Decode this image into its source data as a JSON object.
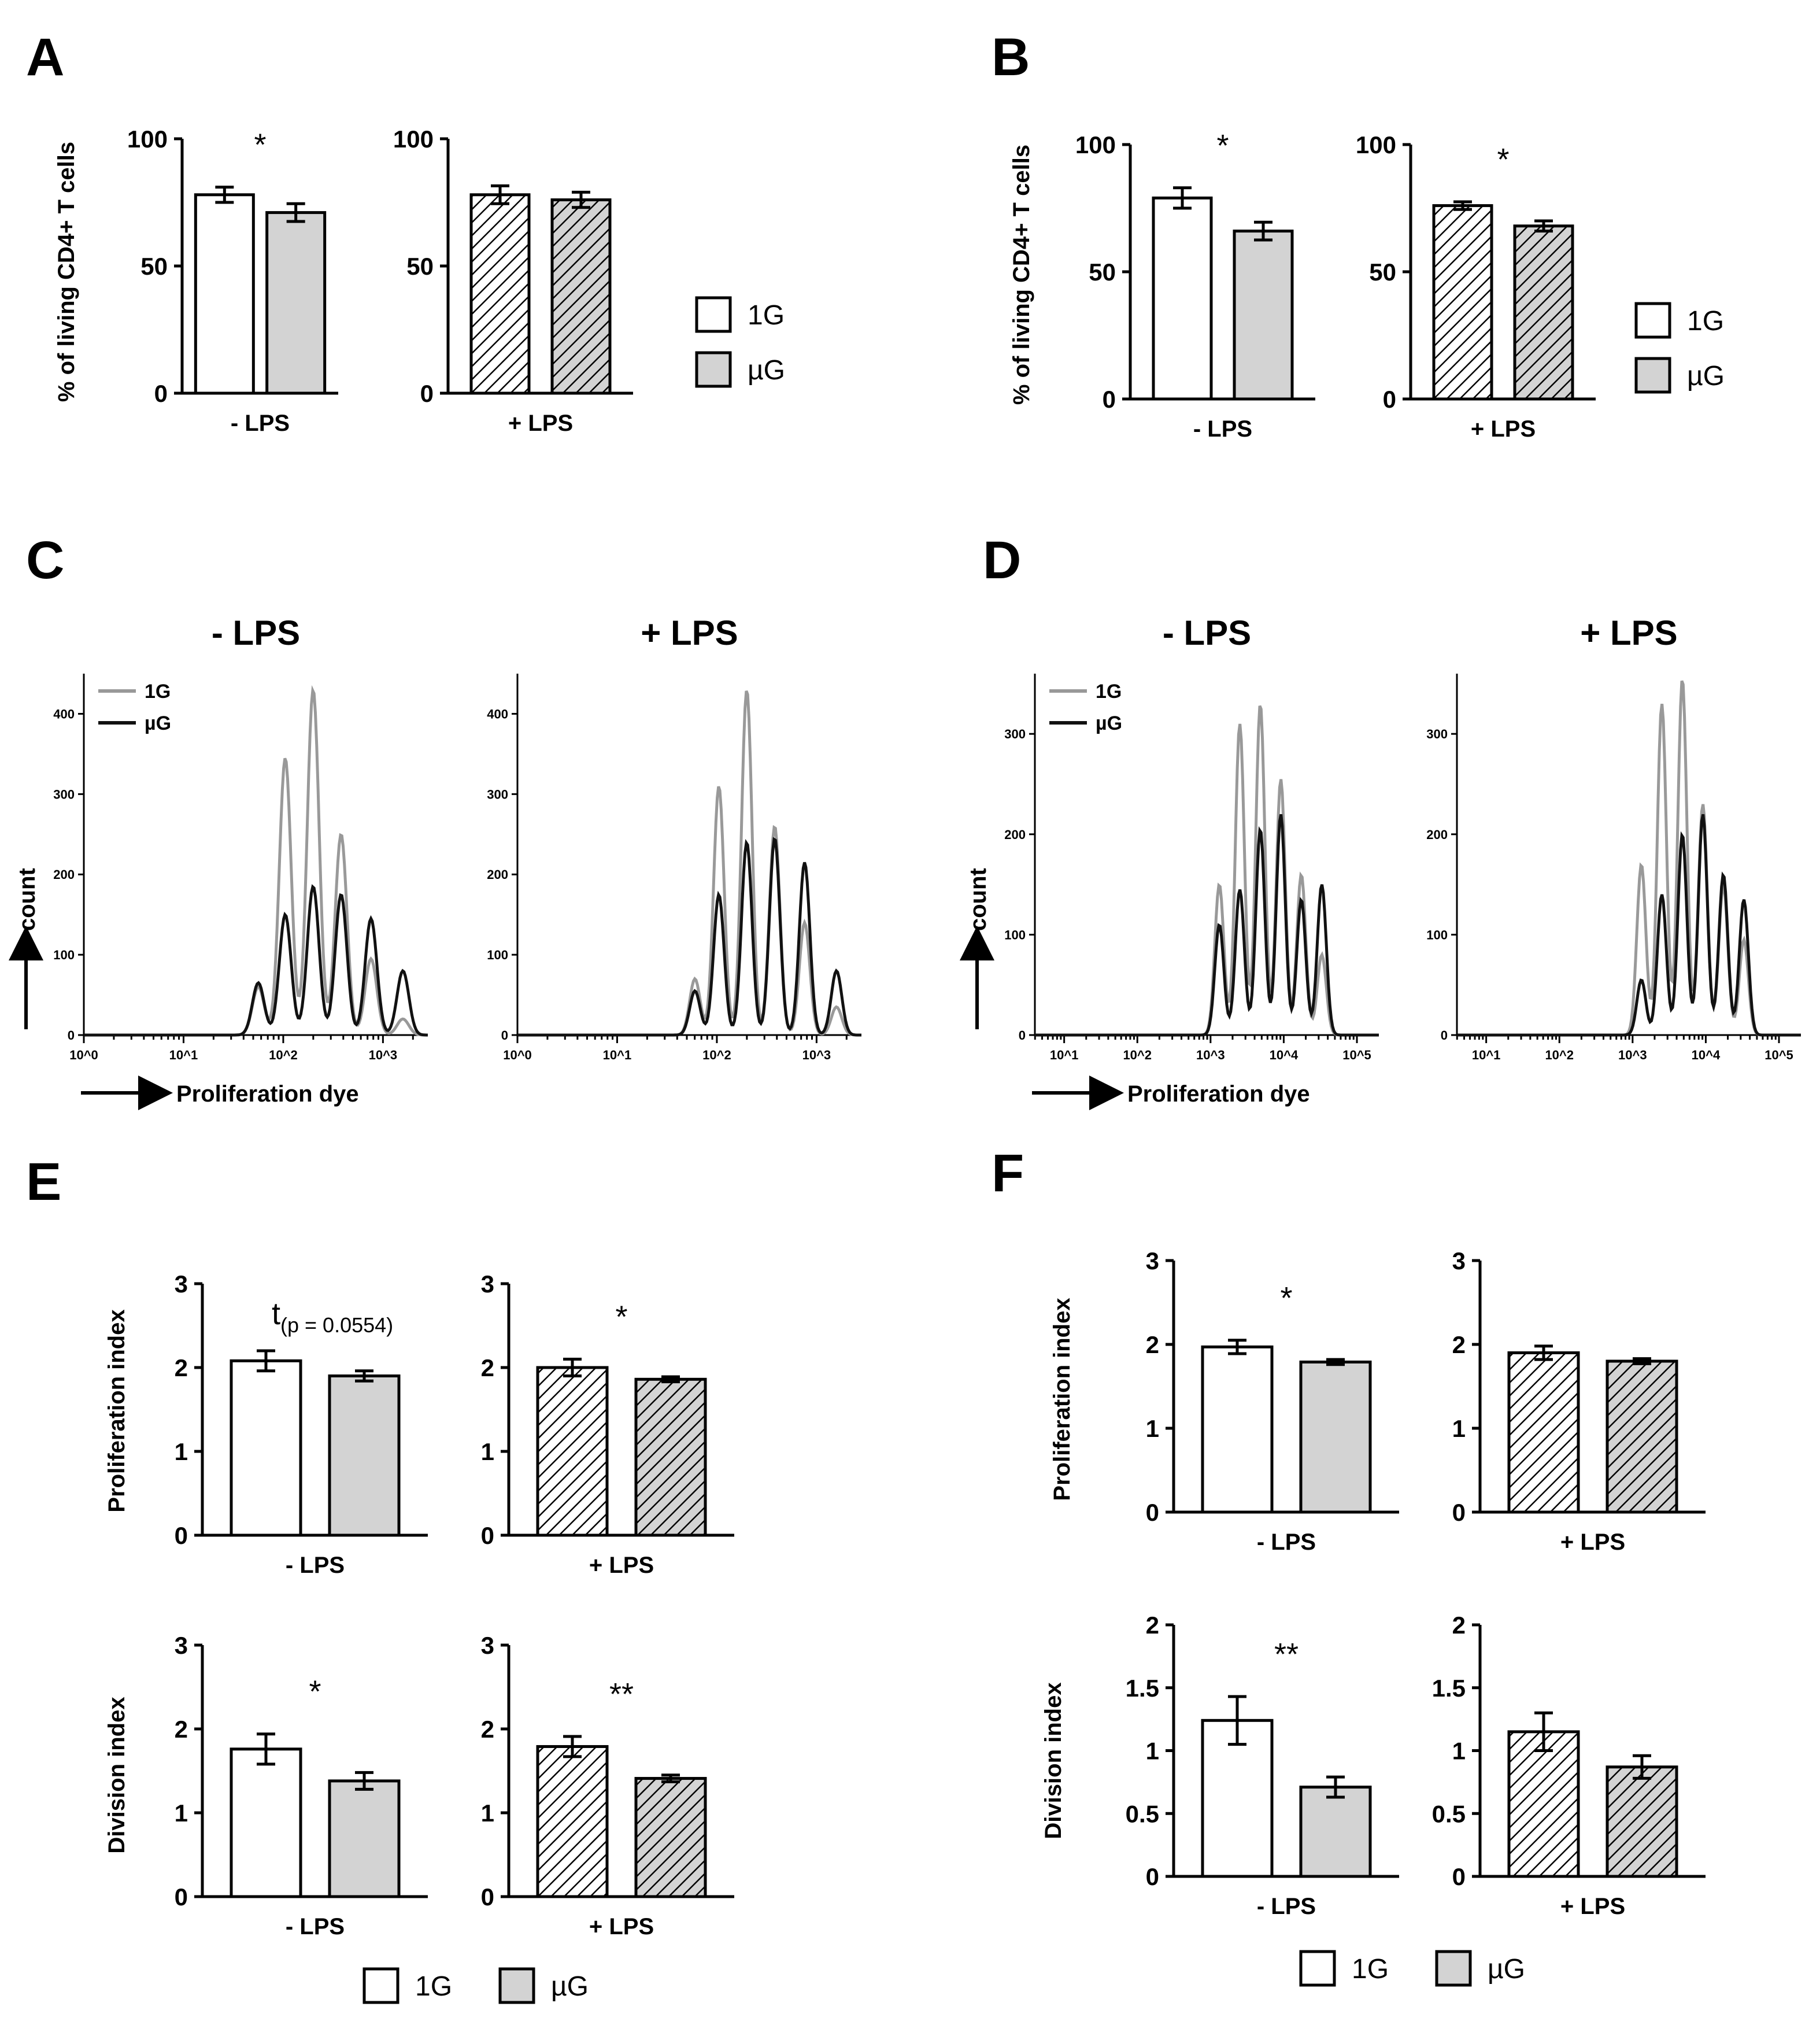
{
  "colors": {
    "g1_fill": "#ffffff",
    "ug_fill": "#d3d3d3",
    "g1_line": "#999999",
    "ug_line": "#111111",
    "stroke": "#000000"
  },
  "legend": {
    "g1": "1G",
    "ug": "µG"
  },
  "histogram_legend": {
    "g1": "1G",
    "ug": "µG"
  },
  "panel_labels": [
    "A",
    "B",
    "C",
    "D",
    "E",
    "F"
  ],
  "chart_data": [
    {
      "id": "A",
      "type": "bar",
      "ylabel": "% of living CD4+ T cells",
      "ylim": [
        0,
        100
      ],
      "yticks": [
        "0",
        "50",
        "100"
      ],
      "groups": [
        {
          "label": "- LPS",
          "hatched": false,
          "categories": [
            "1G",
            "µG"
          ],
          "values": [
            78,
            71
          ],
          "errors": [
            3,
            3.5
          ],
          "significance": "*"
        },
        {
          "label": "+ LPS",
          "hatched": true,
          "categories": [
            "1G",
            "µG"
          ],
          "values": [
            78,
            76
          ],
          "errors": [
            3.5,
            3
          ],
          "significance": ""
        }
      ]
    },
    {
      "id": "B",
      "type": "bar",
      "ylabel": "% of living CD4+ T cells",
      "ylim": [
        0,
        100
      ],
      "yticks": [
        "0",
        "50",
        "100"
      ],
      "groups": [
        {
          "label": "- LPS",
          "hatched": false,
          "categories": [
            "1G",
            "µG"
          ],
          "values": [
            79,
            66
          ],
          "errors": [
            4,
            3.5
          ],
          "significance": "*"
        },
        {
          "label": "+ LPS",
          "hatched": true,
          "categories": [
            "1G",
            "µG"
          ],
          "values": [
            76,
            68
          ],
          "errors": [
            1.5,
            2
          ],
          "significance": "*"
        }
      ]
    },
    {
      "id": "C",
      "type": "line",
      "xlabel": "Proliferation dye",
      "ylabel": "count",
      "xtick_labels": [
        "10^0",
        "10^1",
        "10^2",
        "10^3"
      ],
      "panels": [
        {
          "title": "- LPS",
          "ylim": [
            0,
            450
          ],
          "yticks": [
            "0",
            "100",
            "200",
            "300",
            "400"
          ],
          "peaks_log10": [
            1.75,
            2.02,
            2.3,
            2.58,
            2.88,
            3.2
          ],
          "series": [
            {
              "name": "1G",
              "heights": [
                60,
                345,
                430,
                250,
                95,
                20
              ]
            },
            {
              "name": "µG",
              "heights": [
                65,
                150,
                185,
                175,
                145,
                80
              ]
            }
          ]
        },
        {
          "title": "+ LPS",
          "ylim": [
            0,
            450
          ],
          "yticks": [
            "0",
            "100",
            "200",
            "300",
            "400"
          ],
          "peaks_log10": [
            1.78,
            2.02,
            2.3,
            2.58,
            2.88,
            3.2
          ],
          "series": [
            {
              "name": "1G",
              "heights": [
                70,
                310,
                430,
                260,
                140,
                35
              ]
            },
            {
              "name": "µG",
              "heights": [
                55,
                175,
                240,
                245,
                215,
                80
              ]
            }
          ]
        }
      ]
    },
    {
      "id": "D",
      "type": "line",
      "xlabel": "Proliferation dye",
      "ylabel": "count",
      "xtick_labels": [
        "10^1",
        "10^2",
        "10^3",
        "10^4",
        "10^5"
      ],
      "panels": [
        {
          "title": "- LPS",
          "ylim": [
            0,
            360
          ],
          "yticks": [
            "0",
            "100",
            "200",
            "300"
          ],
          "peaks_log10": [
            3.12,
            3.4,
            3.68,
            3.96,
            4.24,
            4.52
          ],
          "series": [
            {
              "name": "1G",
              "heights": [
                150,
                310,
                330,
                255,
                160,
                80
              ]
            },
            {
              "name": "µG",
              "heights": [
                110,
                145,
                205,
                220,
                135,
                150
              ]
            }
          ]
        },
        {
          "title": "+ LPS",
          "ylim": [
            0,
            360
          ],
          "yticks": [
            "0",
            "100",
            "200",
            "300"
          ],
          "peaks_log10": [
            3.12,
            3.4,
            3.68,
            3.96,
            4.24,
            4.52
          ],
          "series": [
            {
              "name": "1G",
              "heights": [
                170,
                330,
                355,
                230,
                150,
                95
              ]
            },
            {
              "name": "µG",
              "heights": [
                55,
                140,
                200,
                220,
                160,
                135
              ]
            }
          ]
        }
      ]
    },
    {
      "id": "E-proliferation",
      "type": "bar",
      "ylabel": "Proliferation index",
      "ylim": [
        0,
        3
      ],
      "yticks": [
        "0",
        "1",
        "2",
        "3"
      ],
      "groups": [
        {
          "label": "- LPS",
          "hatched": false,
          "categories": [
            "1G",
            "µG"
          ],
          "values": [
            2.08,
            1.9
          ],
          "errors": [
            0.12,
            0.06
          ],
          "significance": "t",
          "significance_sub": "(p = 0.0554)"
        },
        {
          "label": "+ LPS",
          "hatched": true,
          "categories": [
            "1G",
            "µG"
          ],
          "values": [
            2.0,
            1.86
          ],
          "errors": [
            0.1,
            0.03
          ],
          "significance": "*"
        }
      ]
    },
    {
      "id": "E-division",
      "type": "bar",
      "ylabel": "Division index",
      "ylim": [
        0,
        3
      ],
      "yticks": [
        "0",
        "1",
        "2",
        "3"
      ],
      "groups": [
        {
          "label": "- LPS",
          "hatched": false,
          "categories": [
            "1G",
            "µG"
          ],
          "values": [
            1.76,
            1.38
          ],
          "errors": [
            0.18,
            0.1
          ],
          "significance": "*"
        },
        {
          "label": "+ LPS",
          "hatched": true,
          "categories": [
            "1G",
            "µG"
          ],
          "values": [
            1.79,
            1.41
          ],
          "errors": [
            0.12,
            0.04
          ],
          "significance": "**"
        }
      ]
    },
    {
      "id": "F-proliferation",
      "type": "bar",
      "ylabel": "Proliferation index",
      "ylim": [
        0,
        3
      ],
      "yticks": [
        "0",
        "1",
        "2",
        "3"
      ],
      "groups": [
        {
          "label": "- LPS",
          "hatched": false,
          "categories": [
            "1G",
            "µG"
          ],
          "values": [
            1.97,
            1.79
          ],
          "errors": [
            0.08,
            0.03
          ],
          "significance": "*"
        },
        {
          "label": "+ LPS",
          "hatched": true,
          "categories": [
            "1G",
            "µG"
          ],
          "values": [
            1.9,
            1.8
          ],
          "errors": [
            0.08,
            0.03
          ],
          "significance": ""
        }
      ]
    },
    {
      "id": "F-division",
      "type": "bar",
      "ylabel": "Division index",
      "ylim": [
        0,
        2
      ],
      "yticks": [
        "0",
        "0.5",
        "1",
        "1.5",
        "2"
      ],
      "groups": [
        {
          "label": "- LPS",
          "hatched": false,
          "categories": [
            "1G",
            "µG"
          ],
          "values": [
            1.24,
            0.71
          ],
          "errors": [
            0.19,
            0.08
          ],
          "significance": "**"
        },
        {
          "label": "+ LPS",
          "hatched": true,
          "categories": [
            "1G",
            "µG"
          ],
          "values": [
            1.15,
            0.87
          ],
          "errors": [
            0.15,
            0.09
          ],
          "significance": ""
        }
      ]
    }
  ]
}
